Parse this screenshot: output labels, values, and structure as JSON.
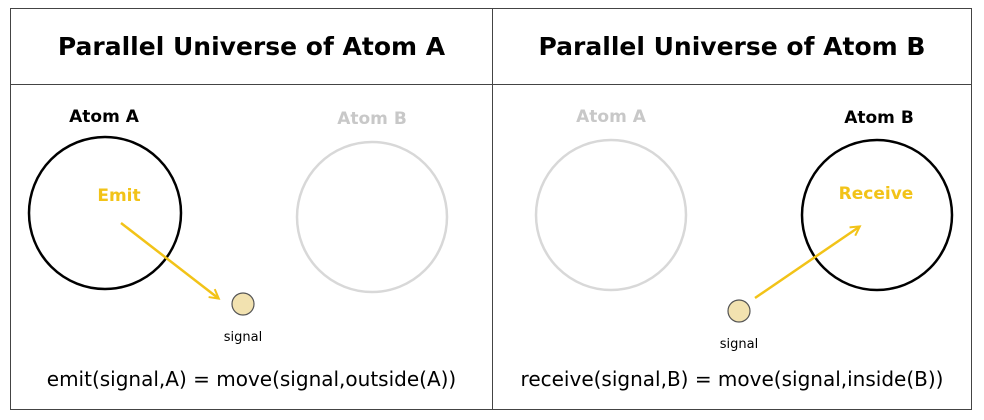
{
  "left_panel": {
    "title": "Parallel Universe of Atom A",
    "atom_a_label": "Atom A",
    "atom_b_label": "Atom B",
    "action_label": "Emit",
    "signal_label": "signal",
    "formula": "emit(signal,A) = move(signal,outside(A))"
  },
  "right_panel": {
    "title": "Parallel Universe of Atom B",
    "atom_a_label": "Atom A",
    "atom_b_label": "Atom B",
    "action_label": "Receive",
    "signal_label": "signal",
    "formula": "receive(signal,B) = move(signal,inside(B))"
  },
  "colors": {
    "active_atom": "#000000",
    "faded_atom": "#d0d0d0",
    "faded_label": "#c8c8c8",
    "arrow": "#f2c318",
    "signal_fill": "#f2e2b0",
    "signal_stroke": "#555555"
  }
}
